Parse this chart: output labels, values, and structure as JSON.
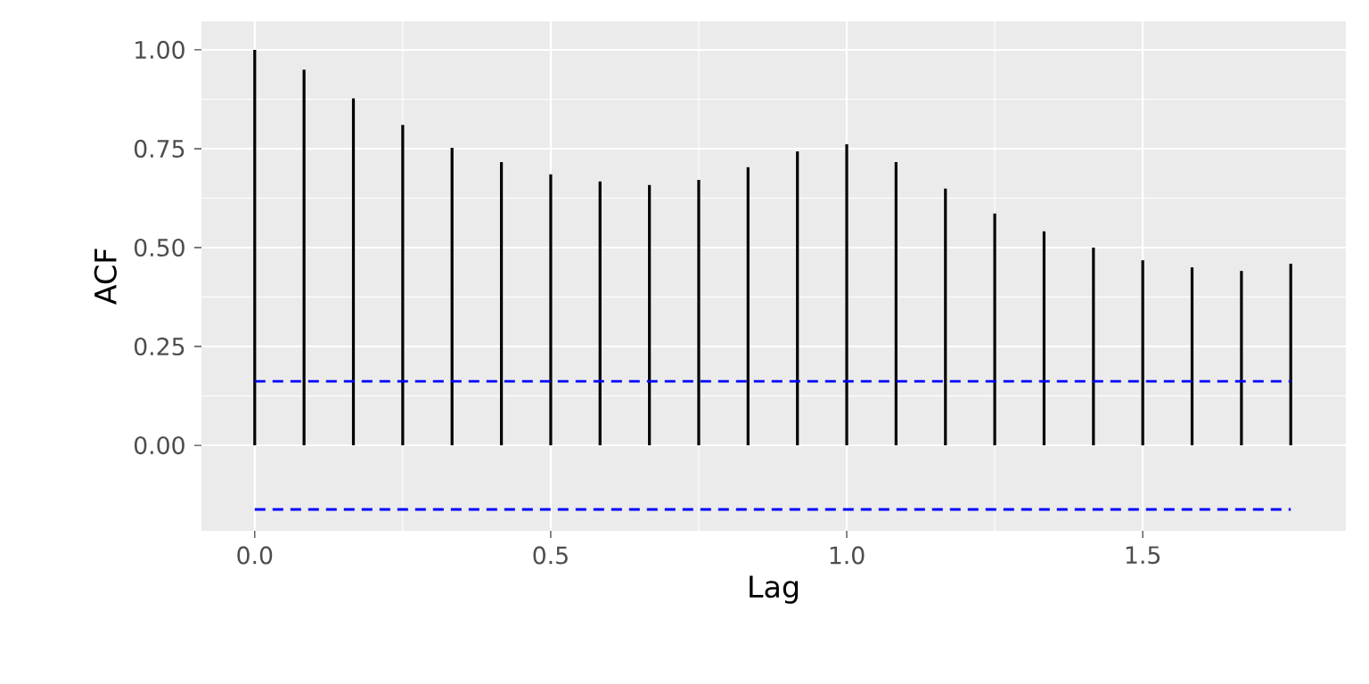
{
  "chart_data": {
    "type": "bar",
    "xlabel": "Lag",
    "ylabel": "ACF",
    "color": "#000000",
    "x": [
      0,
      0.0833,
      0.1667,
      0.25,
      0.3333,
      0.4167,
      0.5,
      0.5833,
      0.6667,
      0.75,
      0.8333,
      0.9167,
      1,
      1.0833,
      1.1667,
      1.25,
      1.3333,
      1.4167,
      1.5,
      1.5833,
      1.6667,
      1.75
    ],
    "values": [
      1.0,
      0.95,
      0.877,
      0.81,
      0.752,
      0.716,
      0.685,
      0.667,
      0.658,
      0.671,
      0.703,
      0.743,
      0.761,
      0.716,
      0.649,
      0.586,
      0.541,
      0.5,
      0.468,
      0.45,
      0.441,
      0.459
    ],
    "xlim": [
      -0.09,
      1.843
    ],
    "ylim": [
      -0.216,
      1.072
    ],
    "xticks": [
      {
        "value": 0,
        "label": "0.0"
      },
      {
        "value": 0.5,
        "label": "0.5"
      },
      {
        "value": 1,
        "label": "1.0"
      },
      {
        "value": 1.5,
        "label": "1.5"
      }
    ],
    "yticks": [
      {
        "value": 0,
        "label": "0.00"
      },
      {
        "value": 0.25,
        "label": "0.25"
      },
      {
        "value": 0.5,
        "label": "0.50"
      },
      {
        "value": 0.75,
        "label": "0.75"
      },
      {
        "value": 1,
        "label": "1.00"
      }
    ],
    "grid": true,
    "ref_lines": [
      {
        "axis": "y",
        "value": 0.162,
        "color": "#0000ff",
        "line_style": "dashed"
      },
      {
        "axis": "y",
        "value": -0.162,
        "color": "#0000ff",
        "line_style": "dashed"
      }
    ]
  }
}
